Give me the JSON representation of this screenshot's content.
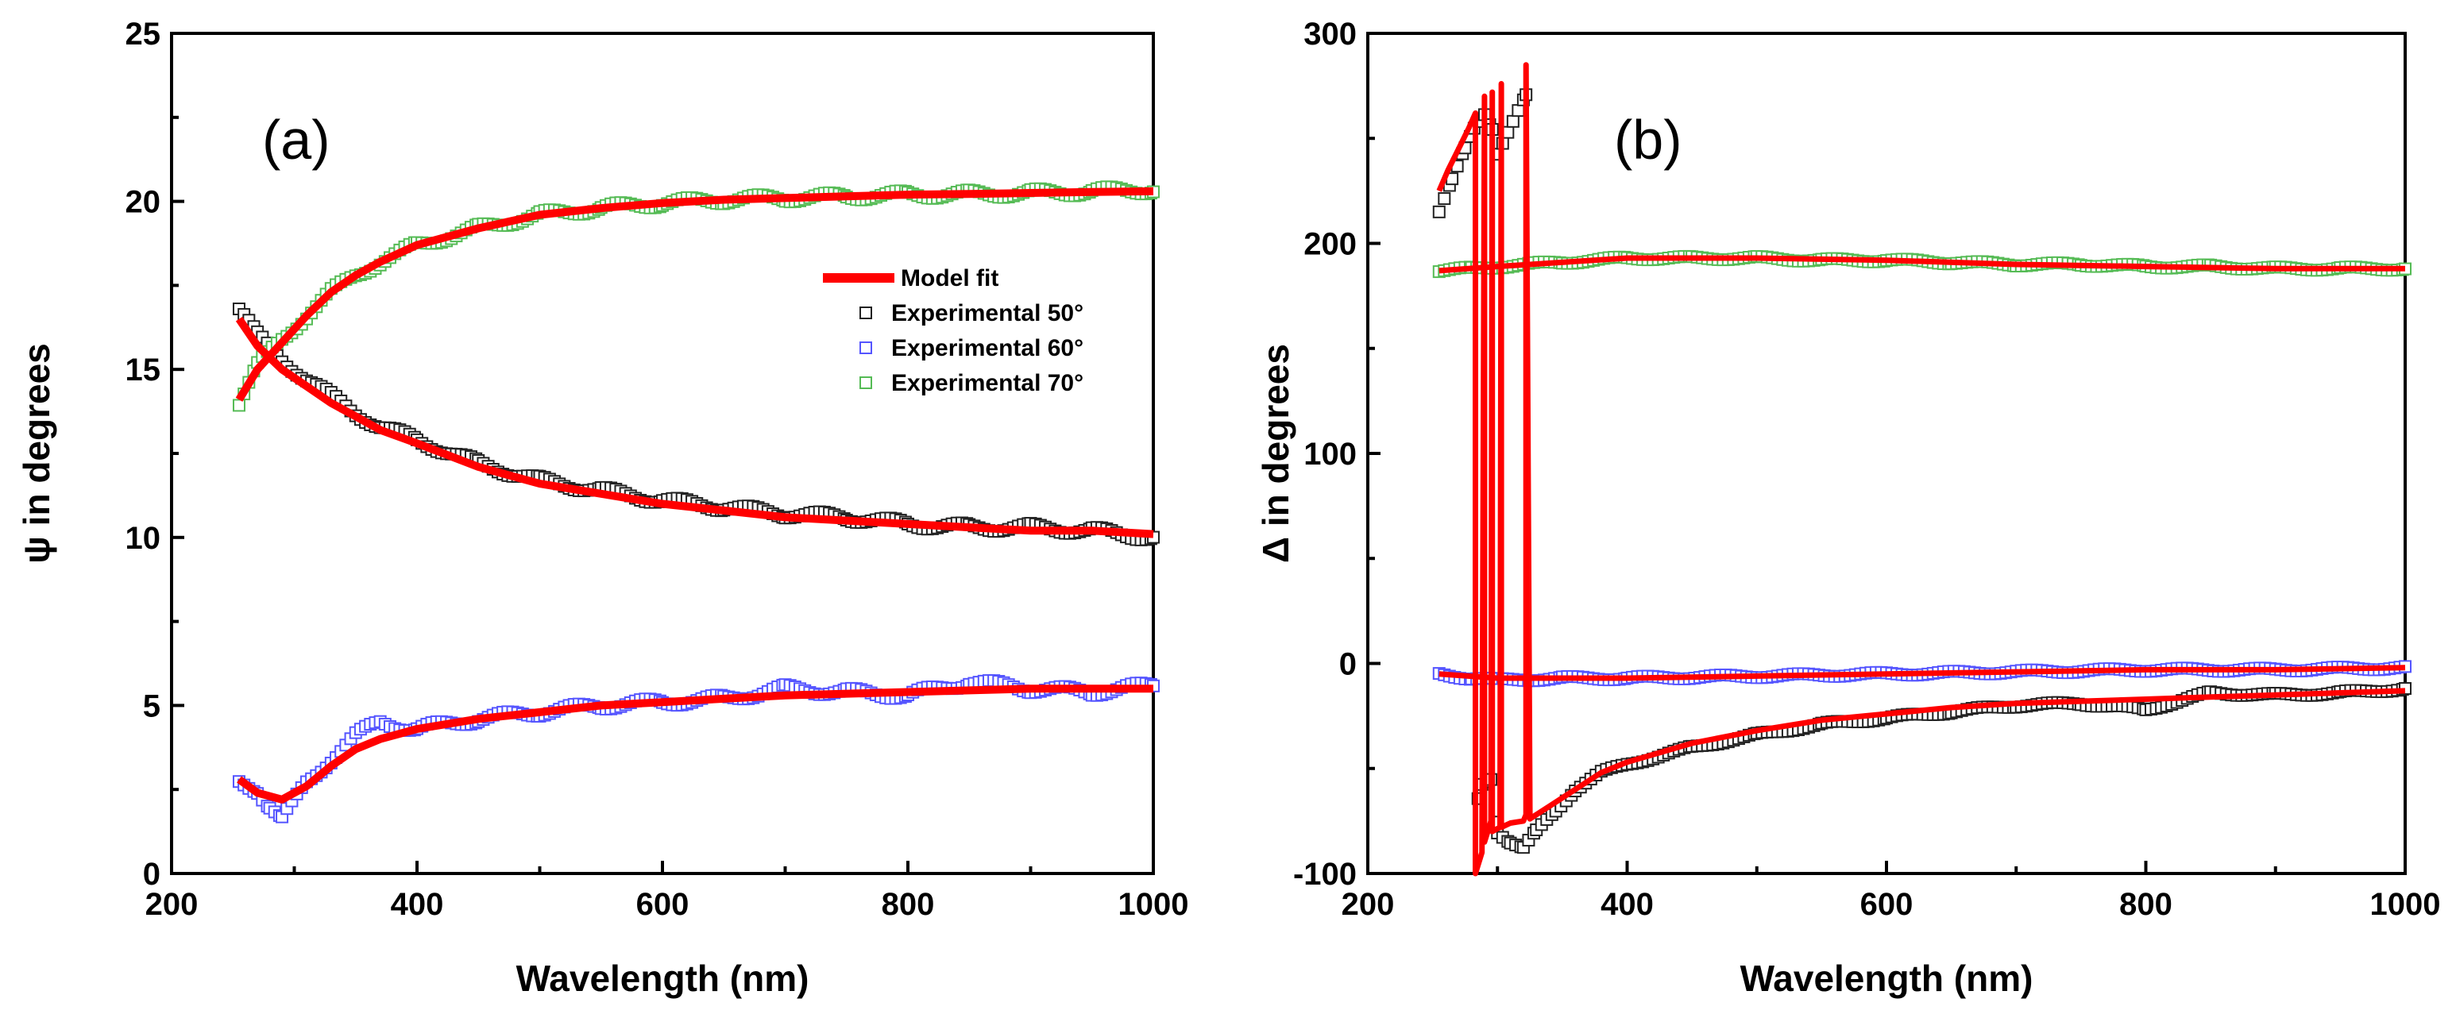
{
  "chart_data": [
    {
      "type": "scatter",
      "panel_label": "(a)",
      "xlabel": "Wavelength (nm)",
      "ylabel": "ψ in degrees",
      "xlim": [
        200,
        1000
      ],
      "ylim": [
        0,
        25
      ],
      "xticks": [
        "200",
        "400",
        "600",
        "800",
        "1000"
      ],
      "yticks": [
        "0",
        "5",
        "10",
        "15",
        "20",
        "25"
      ],
      "legend": {
        "placement": "center-right",
        "entries": [
          "Model fit",
          "Experimental 50°",
          "Experimental 60°",
          "Experimental 70°"
        ]
      },
      "series": [
        {
          "name": "Model fit",
          "kind": "line",
          "color": "#ff0000",
          "x": [
            255,
            270,
            290,
            310,
            330,
            350,
            370,
            400,
            450,
            500,
            550,
            600,
            650,
            700,
            750,
            800,
            850,
            900,
            950,
            1000
          ],
          "curves": [
            [
              16.5,
              15.7,
              15.0,
              14.5,
              14.0,
              13.6,
              13.2,
              12.8,
              12.1,
              11.6,
              11.3,
              11.0,
              10.8,
              10.6,
              10.5,
              10.4,
              10.3,
              10.2,
              10.2,
              10.1
            ],
            [
              14.1,
              15.0,
              15.8,
              16.6,
              17.3,
              17.8,
              18.2,
              18.7,
              19.2,
              19.6,
              19.8,
              19.95,
              20.05,
              20.1,
              20.15,
              20.2,
              20.22,
              20.25,
              20.28,
              20.3
            ],
            [
              2.8,
              2.4,
              2.2,
              2.6,
              3.2,
              3.7,
              4.0,
              4.3,
              4.6,
              4.8,
              5.0,
              5.1,
              5.2,
              5.3,
              5.35,
              5.4,
              5.45,
              5.5,
              5.5,
              5.5
            ]
          ]
        },
        {
          "name": "Experimental 50°",
          "color": "#222222",
          "x": [
            255,
            270,
            290,
            310,
            330,
            350,
            370,
            400,
            450,
            500,
            550,
            600,
            650,
            700,
            750,
            800,
            850,
            900,
            950,
            1000
          ],
          "values": [
            16.8,
            16.0,
            15.3,
            14.7,
            14.2,
            13.7,
            13.3,
            12.9,
            12.2,
            11.7,
            11.4,
            11.1,
            10.9,
            10.7,
            10.6,
            10.4,
            10.3,
            10.3,
            10.2,
            10.0
          ]
        },
        {
          "name": "Experimental 60°",
          "color": "#5555ff",
          "x": [
            255,
            270,
            280,
            290,
            310,
            330,
            350,
            370,
            400,
            450,
            500,
            550,
            600,
            650,
            700,
            750,
            800,
            850,
            900,
            950,
            1000
          ],
          "values": [
            2.7,
            2.5,
            2.0,
            1.6,
            2.7,
            3.4,
            4.1,
            4.5,
            4.3,
            4.6,
            4.8,
            5.0,
            5.1,
            5.2,
            5.5,
            5.4,
            5.3,
            5.7,
            5.5,
            5.4,
            5.6
          ]
        },
        {
          "name": "Experimental 70°",
          "color": "#55bb55",
          "x": [
            255,
            270,
            290,
            310,
            330,
            350,
            370,
            400,
            450,
            500,
            550,
            600,
            650,
            700,
            750,
            800,
            850,
            900,
            950,
            1000
          ],
          "values": [
            14.0,
            15.1,
            15.9,
            16.6,
            17.3,
            17.8,
            18.2,
            18.7,
            19.2,
            19.6,
            19.8,
            19.95,
            20.05,
            20.1,
            20.15,
            20.2,
            20.22,
            20.25,
            20.3,
            20.35
          ]
        }
      ]
    },
    {
      "type": "scatter",
      "panel_label": "(b)",
      "xlabel": "Wavelength (nm)",
      "ylabel": "Δ in degrees",
      "xlim": [
        200,
        1000
      ],
      "ylim": [
        -100,
        300
      ],
      "xticks": [
        "200",
        "400",
        "600",
        "800",
        "1000"
      ],
      "yticks": [
        "-100",
        "0",
        "100",
        "200",
        "300"
      ],
      "series": [
        {
          "name": "Model fit",
          "kind": "line",
          "color": "#ff0000",
          "curves": [
            {
              "x": [
                255,
                262,
                270,
                278,
                283,
                283,
                288,
                290,
                290,
                295,
                296,
                296,
                302,
                303,
                303,
                310,
                320,
                322,
                322,
                325,
                340,
                360,
                380,
                400,
                450,
                500,
                550,
                600,
                650,
                700,
                750,
                800,
                850,
                900,
                950,
                1000
              ],
              "y": [
                225,
                235,
                245,
                255,
                262,
                -100,
                -90,
                270,
                -85,
                -75,
                272,
                -80,
                -78,
                276,
                -78,
                -76,
                -75,
                -72,
                285,
                -74,
                -68,
                -60,
                -52,
                -47,
                -38,
                -32,
                -27,
                -24,
                -21,
                -19,
                -18,
                -17,
                -16,
                -15,
                -14,
                -13
              ]
            },
            {
              "x": [
                255,
                300,
                400,
                500,
                600,
                700,
                800,
                900,
                1000
              ],
              "y": [
                187,
                189,
                193,
                193,
                192,
                190,
                189,
                188,
                188
              ]
            },
            {
              "x": [
                255,
                300,
                400,
                500,
                600,
                700,
                800,
                900,
                1000
              ],
              "y": [
                -5,
                -7,
                -7,
                -6,
                -5,
                -4,
                -3,
                -3,
                -2
              ]
            }
          ]
        },
        {
          "name": "Experimental 50°",
          "color": "#222222",
          "x": [
            255,
            265,
            275,
            282,
            290,
            296,
            300,
            322,
            285,
            288,
            295,
            300,
            310,
            320,
            330,
            345,
            360,
            380,
            400,
            450,
            500,
            550,
            600,
            650,
            700,
            750,
            800,
            850,
            900,
            950,
            1000
          ],
          "values": [
            215,
            230,
            245,
            255,
            262,
            255,
            243,
            270,
            -65,
            -58,
            -55,
            -80,
            -85,
            -88,
            -80,
            -70,
            -60,
            -52,
            -48,
            -40,
            -34,
            -29,
            -26,
            -23,
            -20,
            -19,
            -22,
            -14,
            -15,
            -14,
            -12
          ]
        },
        {
          "name": "Experimental 60°",
          "color": "#5555ff",
          "x": [
            255,
            280,
            300,
            350,
            400,
            500,
            600,
            700,
            800,
            900,
            1000
          ],
          "values": [
            -5,
            -7,
            -8,
            -7,
            -7,
            -6,
            -5,
            -4,
            -3,
            -3,
            -2
          ]
        },
        {
          "name": "Experimental 70°",
          "color": "#55bb55",
          "x": [
            255,
            280,
            300,
            350,
            400,
            450,
            500,
            550,
            600,
            650,
            700,
            750,
            800,
            850,
            900,
            950,
            1000
          ],
          "values": [
            187,
            188,
            189,
            191,
            193,
            193,
            193,
            192,
            192,
            191,
            190,
            190,
            189,
            189,
            188,
            188,
            188
          ]
        }
      ]
    }
  ]
}
